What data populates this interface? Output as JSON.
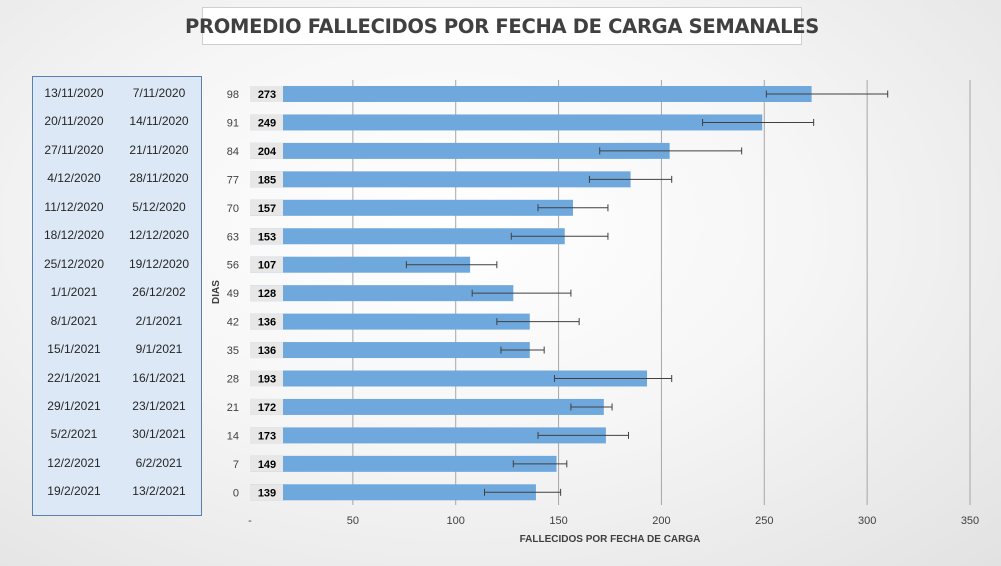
{
  "chart_data": {
    "type": "bar",
    "orientation": "horizontal",
    "title": "PROMEDIO FALLECIDOS POR FECHA DE CARGA SEMANALES",
    "xlabel": "FALLECIDOS POR FECHA DE CARGA",
    "ylabel": "DIAS",
    "xlim": [
      0,
      350
    ],
    "x_ticks": [
      {
        "value": 0,
        "label": "-"
      },
      {
        "value": 50,
        "label": "50"
      },
      {
        "value": 100,
        "label": "100"
      },
      {
        "value": 150,
        "label": "150"
      },
      {
        "value": 200,
        "label": "200"
      },
      {
        "value": 250,
        "label": "250"
      },
      {
        "value": 300,
        "label": "300"
      },
      {
        "value": 350,
        "label": "350"
      }
    ],
    "bar_color": "#6fa8dc",
    "grid": true,
    "rows": [
      {
        "dias": "98",
        "value": 273,
        "label": "273",
        "err_low": 251,
        "err_high": 310,
        "fecha_fin": "13/11/2020",
        "fecha_inicio": "7/11/2020"
      },
      {
        "dias": "91",
        "value": 249,
        "label": "249",
        "err_low": 220,
        "err_high": 274,
        "fecha_fin": "20/11/2020",
        "fecha_inicio": "14/11/2020"
      },
      {
        "dias": "84",
        "value": 204,
        "label": "204",
        "err_low": 170,
        "err_high": 239,
        "fecha_fin": "27/11/2020",
        "fecha_inicio": "21/11/2020"
      },
      {
        "dias": "77",
        "value": 185,
        "label": "185",
        "err_low": 165,
        "err_high": 205,
        "fecha_fin": "4/12/2020",
        "fecha_inicio": "28/11/2020"
      },
      {
        "dias": "70",
        "value": 157,
        "label": "157",
        "err_low": 140,
        "err_high": 174,
        "fecha_fin": "11/12/2020",
        "fecha_inicio": "5/12/2020"
      },
      {
        "dias": "63",
        "value": 153,
        "label": "153",
        "err_low": 127,
        "err_high": 174,
        "fecha_fin": "18/12/2020",
        "fecha_inicio": "12/12/2020"
      },
      {
        "dias": "56",
        "value": 107,
        "label": "107",
        "err_low": 76,
        "err_high": 120,
        "fecha_fin": "25/12/2020",
        "fecha_inicio": "19/12/2020"
      },
      {
        "dias": "49",
        "value": 128,
        "label": "128",
        "err_low": 108,
        "err_high": 156,
        "fecha_fin": "1/1/2021",
        "fecha_inicio": "26/12/202"
      },
      {
        "dias": "42",
        "value": 136,
        "label": "136",
        "err_low": 120,
        "err_high": 160,
        "fecha_fin": "8/1/2021",
        "fecha_inicio": "2/1/2021"
      },
      {
        "dias": "35",
        "value": 136,
        "label": "136",
        "err_low": 122,
        "err_high": 143,
        "fecha_fin": "15/1/2021",
        "fecha_inicio": "9/1/2021"
      },
      {
        "dias": "28",
        "value": 193,
        "label": "193",
        "err_low": 148,
        "err_high": 205,
        "fecha_fin": "22/1/2021",
        "fecha_inicio": "16/1/2021"
      },
      {
        "dias": "21",
        "value": 172,
        "label": "172",
        "err_low": 156,
        "err_high": 176,
        "fecha_fin": "29/1/2021",
        "fecha_inicio": "23/1/2021"
      },
      {
        "dias": "14",
        "value": 173,
        "label": "173",
        "err_low": 140,
        "err_high": 184,
        "fecha_fin": "5/2/2021",
        "fecha_inicio": "30/1/2021"
      },
      {
        "dias": "7",
        "value": 149,
        "label": "149",
        "err_low": 128,
        "err_high": 154,
        "fecha_fin": "12/2/2021",
        "fecha_inicio": "6/2/2021"
      },
      {
        "dias": "0",
        "value": 139,
        "label": "139",
        "err_low": 114,
        "err_high": 151,
        "fecha_fin": "19/2/2021",
        "fecha_inicio": "13/2/2021"
      }
    ]
  }
}
